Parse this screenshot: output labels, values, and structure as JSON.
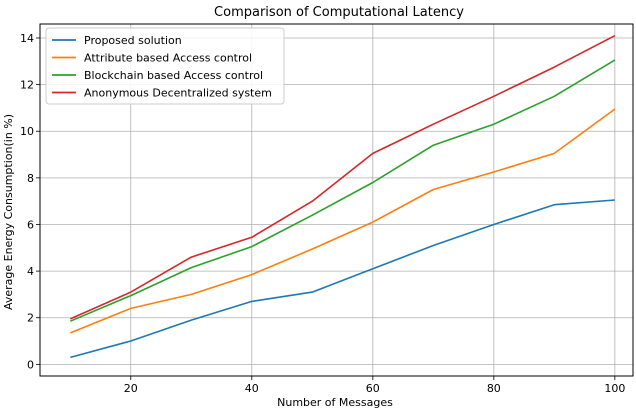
{
  "chart_data": {
    "type": "line",
    "title": "Comparison of Computational Latency",
    "xlabel": "Number of Messages",
    "ylabel": "Average Energy Consumption(in %)",
    "xlim": [
      5,
      103
    ],
    "ylim": [
      -0.5,
      14.6
    ],
    "xticks": [
      20,
      40,
      60,
      80,
      100
    ],
    "yticks": [
      0,
      2,
      4,
      6,
      8,
      10,
      12,
      14
    ],
    "grid": true,
    "legend_position": "top-left",
    "x": [
      10,
      20,
      30,
      40,
      50,
      60,
      70,
      80,
      90,
      100
    ],
    "series": [
      {
        "name": "Proposed solution",
        "color": "#1f77b4",
        "values": [
          0.3,
          1.0,
          1.9,
          2.7,
          3.1,
          4.1,
          5.1,
          6.0,
          6.85,
          7.05
        ]
      },
      {
        "name": "Attribute based Access control",
        "color": "#ff7f0e",
        "values": [
          1.35,
          2.4,
          3.0,
          3.85,
          4.95,
          6.1,
          7.5,
          8.25,
          9.05,
          10.95
        ]
      },
      {
        "name": "Blockchain based Access control",
        "color": "#2ca02c",
        "values": [
          1.85,
          2.95,
          4.15,
          5.05,
          6.4,
          7.8,
          9.4,
          10.3,
          11.5,
          13.05
        ]
      },
      {
        "name": "Anonymous Decentralized system",
        "color": "#d62728",
        "values": [
          1.95,
          3.1,
          4.6,
          5.45,
          7.0,
          9.05,
          10.3,
          11.5,
          12.75,
          14.1
        ]
      }
    ]
  }
}
